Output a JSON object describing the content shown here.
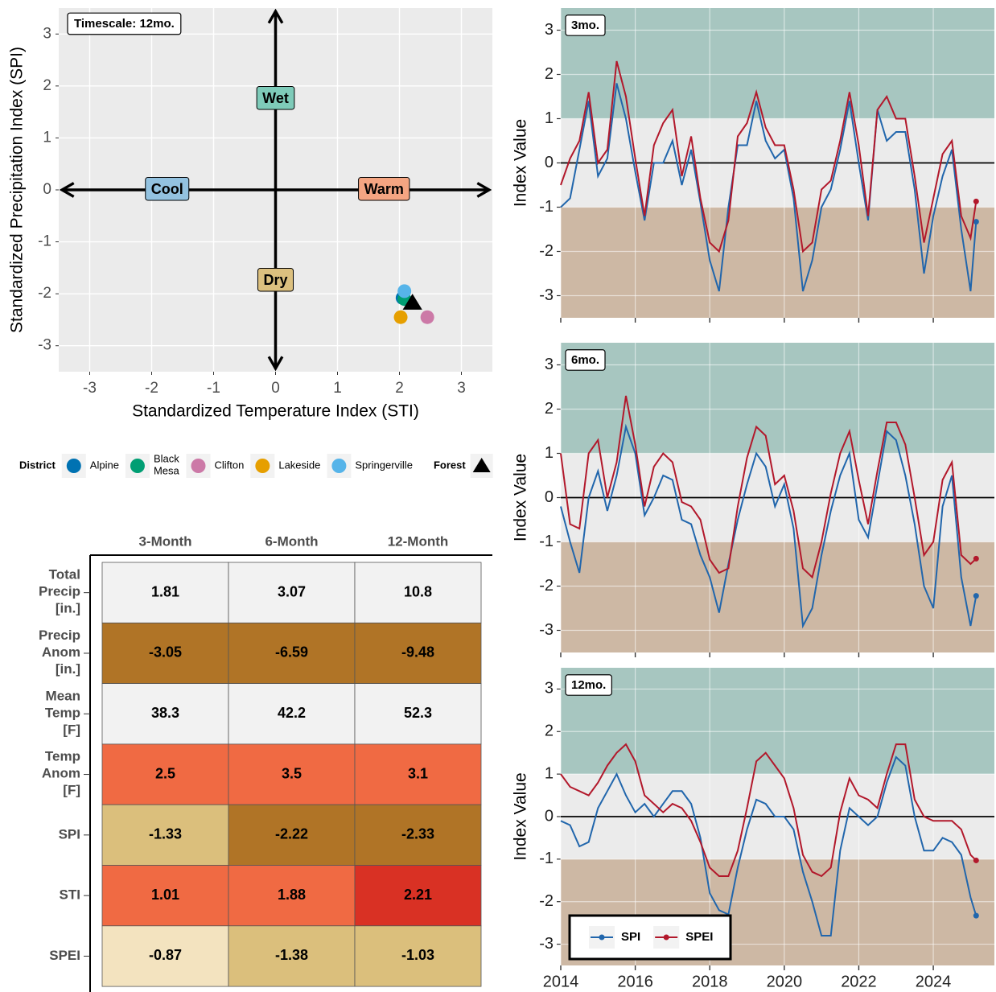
{
  "chart_data": [
    {
      "type": "scatter",
      "annotation": "Timescale:  12mo.",
      "x_label": "Standardized Temperature Index (STI)",
      "y_label": "Standardized Precipitation Index (SPI)",
      "xlim": [
        -3.5,
        3.5
      ],
      "ylim": [
        -3.5,
        3.5
      ],
      "xticks": [
        -3,
        -2,
        -1,
        0,
        1,
        2,
        3
      ],
      "yticks": [
        -3,
        -2,
        -1,
        0,
        1,
        2,
        3
      ],
      "grid": true,
      "quadrant_labels": [
        {
          "label": "Wet",
          "color": "#7ecbb9",
          "position": "top"
        },
        {
          "label": "Dry",
          "color": "#dcc07f",
          "position": "bottom"
        },
        {
          "label": "Cool",
          "color": "#93c2e0",
          "position": "left"
        },
        {
          "label": "Warm",
          "color": "#f4a582",
          "position": "right"
        }
      ],
      "legend_title": "District",
      "series": [
        {
          "name": "Alpine",
          "color": "#0072B2",
          "marker": "circle",
          "x": [
            2.05
          ],
          "values": [
            -2.08
          ]
        },
        {
          "name": "Black\nMesa",
          "color": "#009E73",
          "marker": "circle",
          "x": [
            2.08
          ],
          "values": [
            -2.1
          ]
        },
        {
          "name": "Clifton",
          "color": "#CC79A7",
          "marker": "circle",
          "x": [
            2.45
          ],
          "values": [
            -2.45
          ]
        },
        {
          "name": "Lakeside",
          "color": "#E69F00",
          "marker": "circle",
          "x": [
            2.02
          ],
          "values": [
            -2.45
          ]
        },
        {
          "name": "Springerville",
          "color": "#56B4E9",
          "marker": "circle",
          "x": [
            2.08
          ],
          "values": [
            -1.95
          ]
        },
        {
          "name": "Forest",
          "color": "#000000",
          "marker": "triangle",
          "x": [
            2.21
          ],
          "values": [
            -2.17
          ]
        }
      ]
    },
    {
      "type": "table",
      "columns": [
        "3-Month",
        "6-Month",
        "12-Month"
      ],
      "row_labels": [
        "Total\nPrecip\n[in.]",
        "Precip\nAnom\n[in.]",
        "Mean\nTemp\n[F]",
        "Temp\nAnom\n[F]",
        "SPI",
        "STI",
        "SPEI"
      ],
      "rows": [
        [
          1.81,
          3.07,
          10.8
        ],
        [
          -3.05,
          -6.59,
          -9.48
        ],
        [
          38.3,
          42.2,
          52.3
        ],
        [
          2.5,
          3.5,
          3.1
        ],
        [
          -1.33,
          -2.22,
          -2.33
        ],
        [
          1.01,
          1.88,
          2.21
        ],
        [
          -0.87,
          -1.38,
          -1.03
        ]
      ],
      "cell_colors": [
        [
          "#f2f2f2",
          "#f2f2f2",
          "#f2f2f2"
        ],
        [
          "#b07426",
          "#b07426",
          "#b07426"
        ],
        [
          "#f2f2f2",
          "#f2f2f2",
          "#f2f2f2"
        ],
        [
          "#f06a43",
          "#f06a43",
          "#f06a43"
        ],
        [
          "#dbbf7c",
          "#b07426",
          "#b07426"
        ],
        [
          "#f06a43",
          "#f06a43",
          "#d93124"
        ],
        [
          "#f3e3bf",
          "#dbbf7c",
          "#dbbf7c"
        ]
      ]
    },
    {
      "type": "line",
      "panel_label": "3mo.",
      "y_label": "Index Value",
      "xlim": [
        2014,
        2025.64
      ],
      "ylim": [
        -3.5,
        3.5
      ],
      "xticks": [
        2014,
        2016,
        2018,
        2020,
        2022,
        2024
      ],
      "yticks": [
        -3,
        -2,
        -1,
        0,
        1,
        2,
        3
      ],
      "show_xtick_labels": false,
      "hline": 0,
      "end_marker": true,
      "bands": [
        {
          "from": 1,
          "to": 3.5,
          "color": "#a7c6c0"
        },
        {
          "from": -1,
          "to": 1,
          "color": "#ebebeb"
        },
        {
          "from": -3.5,
          "to": -1,
          "color": "#cdb8a4"
        }
      ],
      "x": [
        2014,
        2014.25,
        2014.5,
        2014.75,
        2015,
        2015.25,
        2015.5,
        2015.75,
        2016,
        2016.25,
        2016.5,
        2016.75,
        2017,
        2017.25,
        2017.5,
        2017.75,
        2018,
        2018.25,
        2018.5,
        2018.75,
        2019,
        2019.25,
        2019.5,
        2019.75,
        2020,
        2020.25,
        2020.5,
        2020.75,
        2021,
        2021.25,
        2021.5,
        2021.75,
        2022,
        2022.25,
        2022.5,
        2022.75,
        2023,
        2023.25,
        2023.5,
        2023.75,
        2024,
        2024.25,
        2024.5,
        2024.75,
        2025,
        2025.15
      ],
      "series": [
        {
          "name": "SPI",
          "color": "#2166ac",
          "values": [
            -1.0,
            -0.8,
            0.3,
            1.4,
            -0.3,
            0.1,
            1.8,
            1.0,
            -0.2,
            -1.3,
            0.0,
            0.0,
            0.5,
            -0.5,
            0.3,
            -0.9,
            -2.2,
            -2.9,
            -1.0,
            0.4,
            0.4,
            1.4,
            0.5,
            0.1,
            0.3,
            -0.8,
            -2.9,
            -2.2,
            -1.0,
            -0.6,
            0.3,
            1.4,
            0.0,
            -1.3,
            1.2,
            0.5,
            0.7,
            0.7,
            -0.6,
            -2.5,
            -1.2,
            -0.3,
            0.3,
            -1.5,
            -2.9,
            -1.33
          ]
        },
        {
          "name": "SPEI",
          "color": "#b2182b",
          "values": [
            -0.5,
            0.1,
            0.5,
            1.6,
            0.0,
            0.3,
            2.3,
            1.5,
            0.1,
            -1.2,
            0.4,
            0.9,
            1.2,
            -0.3,
            0.6,
            -0.8,
            -1.8,
            -2.0,
            -1.3,
            0.6,
            0.9,
            1.6,
            0.8,
            0.4,
            0.4,
            -0.6,
            -2.0,
            -1.8,
            -0.6,
            -0.4,
            0.5,
            1.6,
            0.4,
            -1.2,
            1.2,
            1.5,
            1.0,
            1.0,
            -0.3,
            -1.8,
            -0.8,
            0.2,
            0.5,
            -1.2,
            -1.7,
            -0.87
          ]
        }
      ]
    },
    {
      "type": "line",
      "panel_label": "6mo.",
      "y_label": "Index Value",
      "xlim": [
        2014,
        2025.64
      ],
      "ylim": [
        -3.5,
        3.5
      ],
      "xticks": [
        2014,
        2016,
        2018,
        2020,
        2022,
        2024
      ],
      "yticks": [
        -3,
        -2,
        -1,
        0,
        1,
        2,
        3
      ],
      "show_xtick_labels": false,
      "hline": 0,
      "end_marker": true,
      "bands": [
        {
          "from": 1,
          "to": 3.5,
          "color": "#a7c6c0"
        },
        {
          "from": -1,
          "to": 1,
          "color": "#ebebeb"
        },
        {
          "from": -3.5,
          "to": -1,
          "color": "#cdb8a4"
        }
      ],
      "x": [
        2014,
        2014.25,
        2014.5,
        2014.75,
        2015,
        2015.25,
        2015.5,
        2015.75,
        2016,
        2016.25,
        2016.5,
        2016.75,
        2017,
        2017.25,
        2017.5,
        2017.75,
        2018,
        2018.25,
        2018.5,
        2018.75,
        2019,
        2019.25,
        2019.5,
        2019.75,
        2020,
        2020.25,
        2020.5,
        2020.75,
        2021,
        2021.25,
        2021.5,
        2021.75,
        2022,
        2022.25,
        2022.5,
        2022.75,
        2023,
        2023.25,
        2023.5,
        2023.75,
        2024,
        2024.25,
        2024.5,
        2024.75,
        2025,
        2025.15
      ],
      "series": [
        {
          "name": "SPI",
          "color": "#2166ac",
          "values": [
            -0.2,
            -1.0,
            -1.7,
            0.0,
            0.6,
            -0.3,
            0.5,
            1.6,
            1.0,
            -0.4,
            0.0,
            0.5,
            0.4,
            -0.5,
            -0.6,
            -1.3,
            -1.8,
            -2.6,
            -1.5,
            -0.5,
            0.3,
            1.0,
            0.7,
            -0.2,
            0.3,
            -0.7,
            -2.9,
            -2.5,
            -1.3,
            -0.3,
            0.5,
            1.0,
            -0.5,
            -0.9,
            0.3,
            1.5,
            1.3,
            0.5,
            -0.6,
            -2.0,
            -2.5,
            -0.2,
            0.5,
            -1.8,
            -2.9,
            -2.22
          ]
        },
        {
          "name": "SPEI",
          "color": "#b2182b",
          "values": [
            1.0,
            -0.6,
            -0.7,
            1.0,
            1.3,
            0.0,
            0.8,
            2.3,
            1.2,
            -0.2,
            0.7,
            1.0,
            0.8,
            -0.1,
            -0.2,
            -0.5,
            -1.4,
            -1.7,
            -1.6,
            -0.2,
            0.9,
            1.6,
            1.4,
            0.3,
            0.5,
            -0.3,
            -1.6,
            -1.8,
            -1.0,
            0.1,
            1.0,
            1.5,
            0.4,
            -0.6,
            0.6,
            1.7,
            1.7,
            1.2,
            0.0,
            -1.3,
            -1.0,
            0.4,
            0.8,
            -1.3,
            -1.5,
            -1.38
          ]
        }
      ]
    },
    {
      "type": "line",
      "panel_label": "12mo.",
      "y_label": "Index Value",
      "xlim": [
        2014,
        2025.64
      ],
      "ylim": [
        -3.5,
        3.5
      ],
      "xticks": [
        2014,
        2016,
        2018,
        2020,
        2022,
        2024
      ],
      "yticks": [
        -3,
        -2,
        -1,
        0,
        1,
        2,
        3
      ],
      "show_xtick_labels": true,
      "hline": 0,
      "end_marker": true,
      "legend": "bottom-left",
      "bands": [
        {
          "from": 1,
          "to": 3.5,
          "color": "#a7c6c0"
        },
        {
          "from": -1,
          "to": 1,
          "color": "#ebebeb"
        },
        {
          "from": -3.5,
          "to": -1,
          "color": "#cdb8a4"
        }
      ],
      "x": [
        2014,
        2014.25,
        2014.5,
        2014.75,
        2015,
        2015.25,
        2015.5,
        2015.75,
        2016,
        2016.25,
        2016.5,
        2016.75,
        2017,
        2017.25,
        2017.5,
        2017.75,
        2018,
        2018.25,
        2018.5,
        2018.75,
        2019,
        2019.25,
        2019.5,
        2019.75,
        2020,
        2020.25,
        2020.5,
        2020.75,
        2021,
        2021.25,
        2021.5,
        2021.75,
        2022,
        2022.25,
        2022.5,
        2022.75,
        2023,
        2023.25,
        2023.5,
        2023.75,
        2024,
        2024.25,
        2024.5,
        2024.75,
        2025,
        2025.15
      ],
      "series": [
        {
          "name": "SPI",
          "color": "#2166ac",
          "values": [
            -0.1,
            -0.2,
            -0.7,
            -0.6,
            0.2,
            0.6,
            1.0,
            0.5,
            0.1,
            0.3,
            0.0,
            0.3,
            0.6,
            0.6,
            0.3,
            -0.5,
            -1.8,
            -2.2,
            -2.3,
            -1.2,
            -0.3,
            0.4,
            0.3,
            0.0,
            0.0,
            -0.3,
            -1.3,
            -2.0,
            -2.8,
            -2.8,
            -0.8,
            0.2,
            0.0,
            -0.2,
            0.0,
            0.8,
            1.4,
            1.2,
            0.0,
            -0.8,
            -0.8,
            -0.5,
            -0.6,
            -0.9,
            -1.9,
            -2.33
          ]
        },
        {
          "name": "SPEI",
          "color": "#b2182b",
          "values": [
            1.0,
            0.7,
            0.6,
            0.5,
            0.8,
            1.2,
            1.5,
            1.7,
            1.3,
            0.5,
            0.3,
            0.1,
            0.3,
            0.2,
            -0.1,
            -0.6,
            -1.2,
            -1.4,
            -1.4,
            -0.8,
            0.2,
            1.3,
            1.5,
            1.2,
            0.9,
            0.2,
            -0.9,
            -1.3,
            -1.4,
            -1.2,
            0.1,
            0.9,
            0.5,
            0.4,
            0.2,
            1.0,
            1.7,
            1.7,
            0.4,
            0.0,
            -0.1,
            -0.1,
            -0.1,
            -0.3,
            -0.9,
            -1.03
          ]
        }
      ]
    }
  ]
}
